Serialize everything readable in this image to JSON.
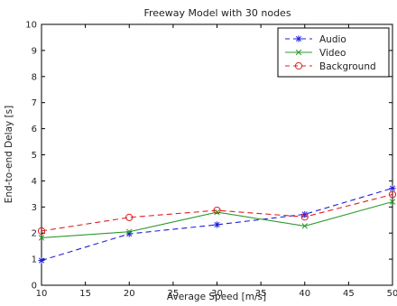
{
  "chart_data": {
    "type": "line",
    "title": "Freeway Model with 30 nodes",
    "xlabel": "Average Speed [m/s]",
    "ylabel": "End-to-end Delay [s]",
    "xlim": [
      10,
      50
    ],
    "ylim": [
      0,
      10
    ],
    "x_ticks": [
      10,
      15,
      20,
      25,
      30,
      35,
      40,
      45,
      50
    ],
    "y_ticks": [
      0,
      1,
      2,
      3,
      4,
      5,
      6,
      7,
      8,
      9,
      10
    ],
    "x": [
      10,
      20,
      30,
      40,
      50
    ],
    "series": [
      {
        "name": "Audio",
        "values": [
          0.95,
          1.97,
          2.32,
          2.72,
          3.72
        ],
        "color": "#1f1fdc",
        "dash": "dashed",
        "marker": "asterisk"
      },
      {
        "name": "Video",
        "values": [
          1.82,
          2.05,
          2.8,
          2.27,
          3.2
        ],
        "color": "#2e9a2e",
        "dash": "solid",
        "marker": "x"
      },
      {
        "name": "Background",
        "values": [
          2.08,
          2.6,
          2.87,
          2.62,
          3.48
        ],
        "color": "#e02020",
        "dash": "dashed",
        "marker": "circle"
      }
    ],
    "legend_position": "top-right",
    "grid": false
  }
}
